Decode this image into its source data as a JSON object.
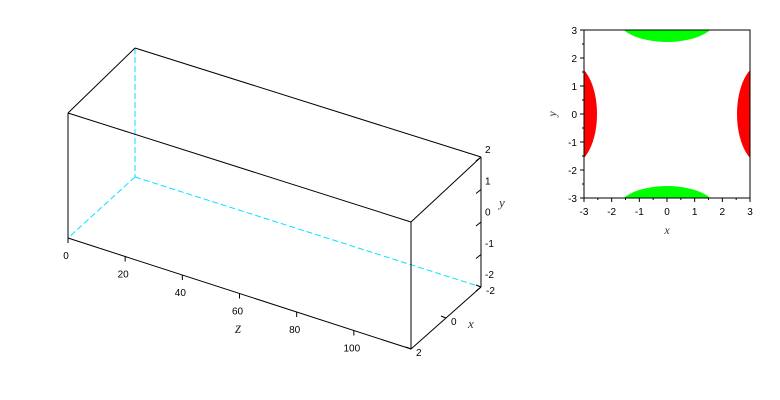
{
  "chart_data": [
    {
      "type": "3d-box",
      "xlabel": "x",
      "ylabel": "y",
      "zlabel": "z",
      "x_ticks": [
        "-2",
        "0",
        "2"
      ],
      "y_ticks": [
        "2",
        "1",
        "0",
        "-1",
        "-2"
      ],
      "z_ticks": [
        "0",
        "20",
        "40",
        "60",
        "80",
        "100"
      ],
      "xlim": [
        -2,
        2
      ],
      "ylim": [
        -2,
        2
      ],
      "zlim": [
        0,
        120
      ],
      "colors": {
        "box": "#000000",
        "hidden_edges": "#00e5ff"
      }
    },
    {
      "type": "heatmap",
      "xlabel": "x",
      "ylabel": "y",
      "xlim": [
        -3,
        3
      ],
      "ylim": [
        -3,
        3
      ],
      "x_ticks": [
        "-3",
        "-2",
        "-1",
        "0",
        "1",
        "2",
        "3"
      ],
      "y_ticks": [
        "3",
        "2",
        "1",
        "0",
        "-1",
        "-2",
        "-3"
      ],
      "regions": [
        {
          "color": "#ff0000",
          "location": "left and right edges, y from -1.5 to 1.5"
        },
        {
          "color": "#00ff00",
          "location": "top and bottom edges, x from -1.5 to 1.5"
        }
      ]
    }
  ]
}
